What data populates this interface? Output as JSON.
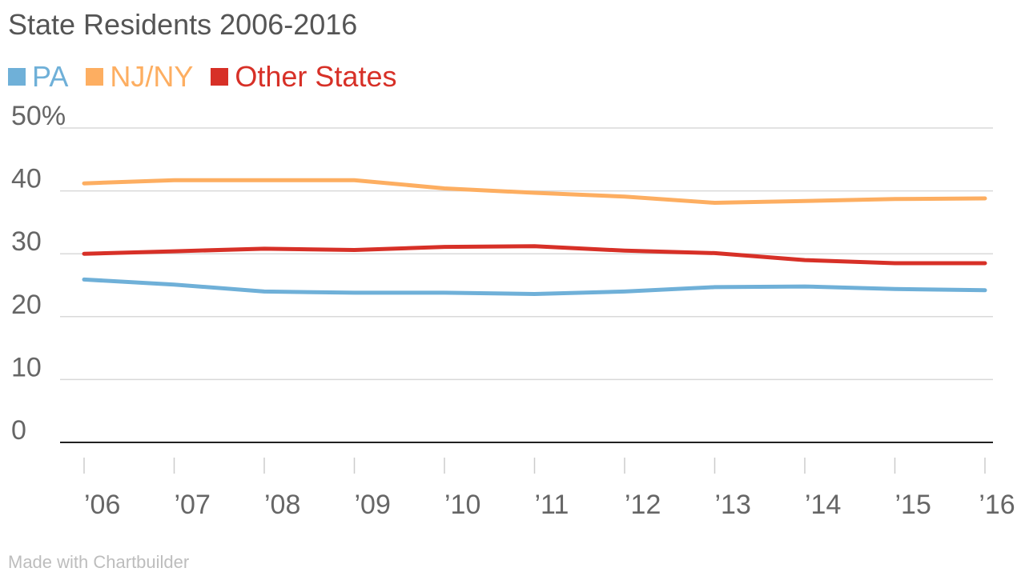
{
  "title": "State Residents 2006-2016",
  "credit": "Made with Chartbuilder",
  "colors": {
    "pa": "#6fb0d8",
    "njny": "#fdae61",
    "other": "#d73027",
    "grid": "#d9d9d9",
    "baseline": "#222222",
    "tick": "#cccccc",
    "title": "#555555"
  },
  "chart_data": {
    "type": "line",
    "title": "State Residents 2006-2016",
    "x": [
      "’06",
      "’07",
      "’08",
      "’09",
      "’10",
      "’11",
      "’12",
      "’13",
      "’14",
      "’15",
      "’16"
    ],
    "y_ticks": [
      0,
      10,
      20,
      30,
      40,
      50
    ],
    "y_tick_labels": [
      "0",
      "10",
      "20",
      "30",
      "40",
      "50%"
    ],
    "ylim": [
      0,
      50
    ],
    "grid": true,
    "legend_position": "top-left",
    "series": [
      {
        "name": "PA",
        "color": "#6fb0d8",
        "values": [
          25.9,
          25.1,
          24.0,
          23.8,
          23.8,
          23.6,
          24.0,
          24.7,
          24.8,
          24.4,
          24.2
        ]
      },
      {
        "name": "NJ/NY",
        "color": "#fdae61",
        "values": [
          41.2,
          41.7,
          41.7,
          41.7,
          40.4,
          39.7,
          39.1,
          38.1,
          38.4,
          38.7,
          38.8
        ]
      },
      {
        "name": "Other States",
        "color": "#d73027",
        "values": [
          30.0,
          30.4,
          30.8,
          30.6,
          31.1,
          31.2,
          30.5,
          30.1,
          29.0,
          28.5,
          28.5
        ]
      }
    ]
  }
}
